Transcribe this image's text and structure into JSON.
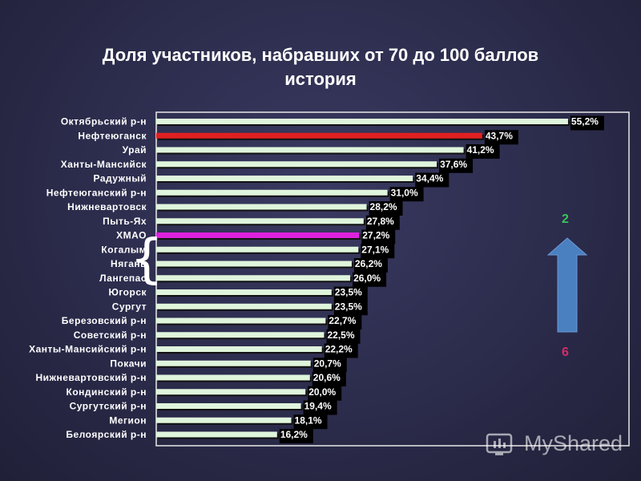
{
  "chart_data": {
    "type": "bar",
    "orientation": "horizontal",
    "title": "Доля участников, набравших от 70 до 100 баллов",
    "subtitle": "история",
    "categories": [
      "Октябрьский р-н",
      "Нефтеюганск",
      "Урай",
      "Ханты-Мансийск",
      "Радужный",
      "Нефтеюганский р-н",
      "Нижневартовск",
      "Пыть-Ях",
      "ХМАО",
      "Когалым",
      "Нягань",
      "Лангепас",
      "Югорск",
      "Сургут",
      "Березовский р-н",
      "Советский р-н",
      "Ханты-Мансийский р-н",
      "Покачи",
      "Нижневартовский р-н",
      "Кондинский р-н",
      "Сургутский р-н",
      "Мегион",
      "Белоярский р-н"
    ],
    "values": [
      55.2,
      43.7,
      41.2,
      37.6,
      34.4,
      31.0,
      28.2,
      27.8,
      27.2,
      27.1,
      26.2,
      26.0,
      23.5,
      23.5,
      22.7,
      22.5,
      22.2,
      20.7,
      20.6,
      20.0,
      19.4,
      18.1,
      16.2
    ],
    "value_labels": [
      "55,2%",
      "43,7%",
      "41,2%",
      "37,6%",
      "34,4%",
      "31,0%",
      "28,2%",
      "27,8%",
      "27,2%",
      "27,1%",
      "26,2%",
      "26,0%",
      "23,5%",
      "23,5%",
      "22,7%",
      "22,5%",
      "22,2%",
      "20,7%",
      "20,6%",
      "20,0%",
      "19,4%",
      "18,1%",
      "16,2%"
    ],
    "highlighted": {
      "1": "#e02020",
      "8": "#dd22dd"
    },
    "bar_color": "#dff5dc",
    "xlim": [
      0,
      58
    ],
    "grid": false
  },
  "annotations": {
    "rank_top": "2",
    "rank_bottom": "6",
    "brace": "{"
  },
  "watermark": {
    "text": "MyShared"
  },
  "colors": {
    "arrow_fill": "#4a7fc0",
    "rank_top": "#38c45a",
    "rank_bottom": "#d62a6a"
  }
}
